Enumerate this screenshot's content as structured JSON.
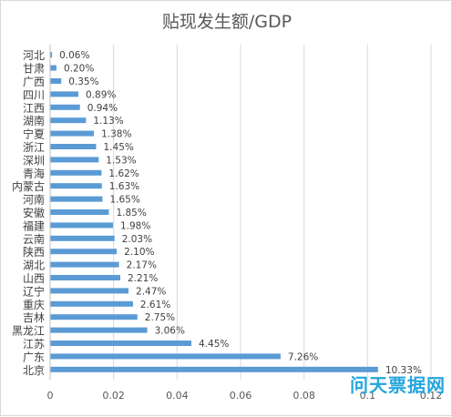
{
  "chart_data": {
    "type": "bar",
    "orientation": "horizontal",
    "title": "贴现发生额/GDP",
    "categories": [
      "河北",
      "甘肃",
      "广西",
      "四川",
      "江西",
      "湖南",
      "宁夏",
      "浙江",
      "深圳",
      "青海",
      "内蒙古",
      "河南",
      "安徽",
      "福建",
      "云南",
      "陕西",
      "湖北",
      "山西",
      "辽宁",
      "重庆",
      "吉林",
      "黑龙江",
      "江苏",
      "广东",
      "北京"
    ],
    "values": [
      0.0006,
      0.002,
      0.0035,
      0.0089,
      0.0094,
      0.0113,
      0.0138,
      0.0145,
      0.0153,
      0.0162,
      0.0163,
      0.0165,
      0.0185,
      0.0198,
      0.0203,
      0.021,
      0.0217,
      0.0221,
      0.0247,
      0.0261,
      0.0275,
      0.0306,
      0.0445,
      0.0726,
      0.1033
    ],
    "data_labels": [
      "0.06%",
      "0.20%",
      "0.35%",
      "0.89%",
      "0.94%",
      "1.13%",
      "1.38%",
      "1.45%",
      "1.53%",
      "1.62%",
      "1.63%",
      "1.65%",
      "1.85%",
      "1.98%",
      "2.03%",
      "2.10%",
      "2.17%",
      "2.21%",
      "2.47%",
      "2.61%",
      "2.75%",
      "3.06%",
      "4.45%",
      "7.26%",
      "10.33%"
    ],
    "x_ticks": [
      "0",
      "0.02",
      "0.04",
      "0.06",
      "0.08",
      "0.1",
      "0.12"
    ],
    "xlim": [
      0,
      0.12
    ],
    "grid": "vertical",
    "bar_color": "#5b9bd5"
  },
  "watermark": "问天票据网"
}
